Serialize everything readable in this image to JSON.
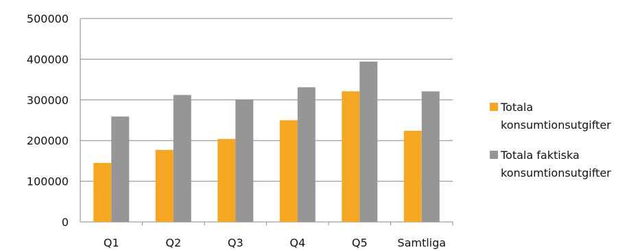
{
  "chart_data": {
    "type": "bar",
    "title": "",
    "xlabel": "",
    "ylabel": "",
    "categories": [
      "Q1",
      "Q2",
      "Q3",
      "Q4",
      "Q5",
      "Samtliga"
    ],
    "series": [
      {
        "name": "Totala konsumtionsutgifter",
        "name_lines": [
          "Totala",
          "konsumtionsutgifter"
        ],
        "color": "#F5A623",
        "values": [
          145000,
          177000,
          204000,
          250000,
          321000,
          224000
        ]
      },
      {
        "name": "Totala faktiska konsumtionsutgifter",
        "name_lines": [
          "Totala faktiska",
          "konsumtionsutgifter"
        ],
        "color": "#969696",
        "values": [
          259000,
          312000,
          301000,
          331000,
          394000,
          321000
        ]
      }
    ],
    "ylim": [
      0,
      500000
    ],
    "yticks": [
      0,
      100000,
      200000,
      300000,
      400000,
      500000
    ],
    "ytick_labels": [
      "0",
      "100000",
      "200000",
      "300000",
      "400000",
      "500000"
    ],
    "grid": true,
    "legend_position": "right"
  }
}
